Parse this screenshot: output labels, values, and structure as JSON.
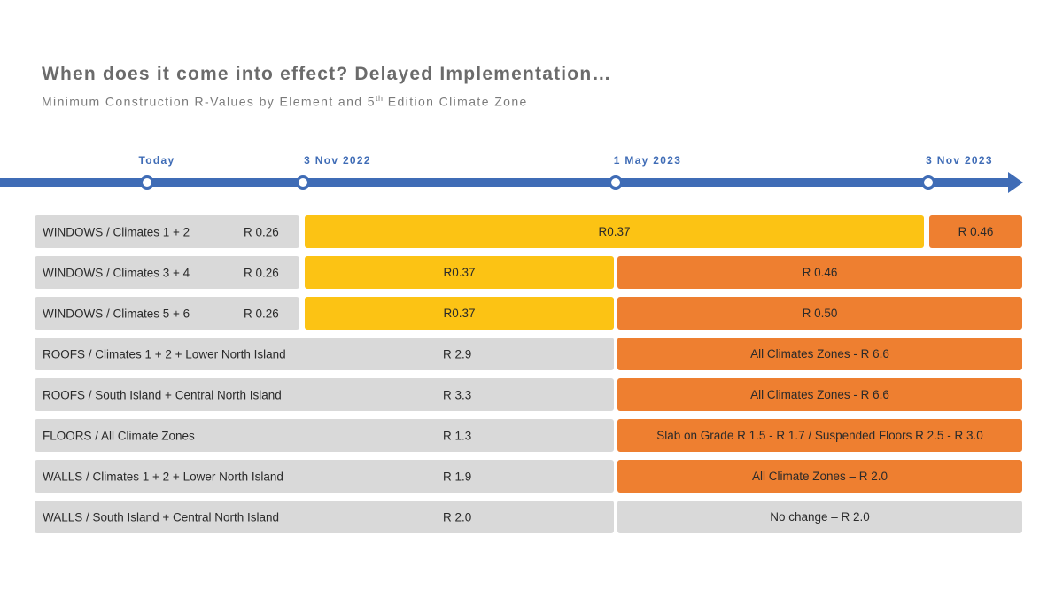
{
  "header": {
    "title": "When does it come into effect? Delayed Implementation…",
    "subtitle_pre": "Minimum Construction R-Values by Element and 5",
    "subtitle_sup": "th",
    "subtitle_post": " Edition Climate Zone"
  },
  "timeline": {
    "color": "#3f6cb6",
    "milestones": [
      {
        "label": "Today"
      },
      {
        "label": "3 Nov 2022"
      },
      {
        "label": "1 May 2023"
      },
      {
        "label": "3 Nov 2023"
      }
    ]
  },
  "colors": {
    "gray": "#d9d9d9",
    "yellow": "#fcc314",
    "orange": "#ee7f30"
  },
  "rows": [
    {
      "element": "WINDOWS / Climates 1 + 2",
      "current": "R 0.26",
      "phase1": "R0.37",
      "phase2": "R 0.46"
    },
    {
      "element": "WINDOWS / Climates 3 + 4",
      "current": "R 0.26",
      "phase1": "R0.37",
      "phase2": "R 0.46"
    },
    {
      "element": "WINDOWS / Climates 5 + 6",
      "current": "R 0.26",
      "phase1": "R0.37",
      "phase2": "R 0.50"
    },
    {
      "element": "ROOFS / Climates 1 + 2 + Lower North Island",
      "current": "R 2.9",
      "phase2": "All Climates Zones - R 6.6"
    },
    {
      "element": "ROOFS / South Island + Central North Island",
      "current": "R 3.3",
      "phase2": "All Climates Zones - R 6.6"
    },
    {
      "element": "FLOORS / All Climate Zones",
      "current": "R 1.3",
      "phase2": "Slab on Grade R 1.5 - R 1.7 / Suspended Floors R 2.5 - R 3.0"
    },
    {
      "element": "WALLS / Climates 1 + 2 + Lower North Island",
      "current": "R 1.9",
      "phase2": "All Climate Zones – R 2.0"
    },
    {
      "element": "WALLS / South Island + Central North Island",
      "current": "R 2.0",
      "phase2": "No change – R 2.0"
    }
  ]
}
